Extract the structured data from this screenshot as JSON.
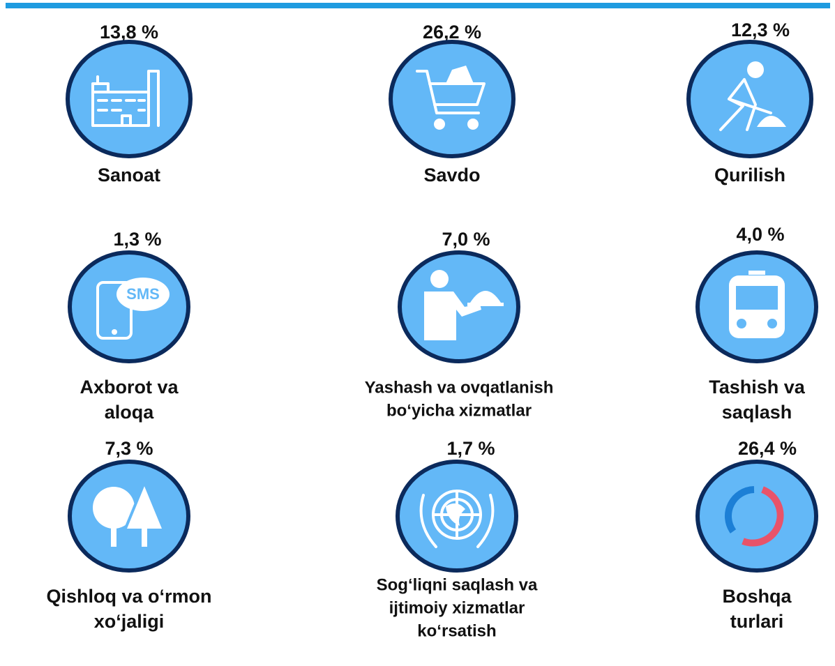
{
  "items": [
    {
      "value": "13,8 %",
      "label": [
        "Sanoat"
      ]
    },
    {
      "value": "26,2 %",
      "label": [
        "Savdo"
      ]
    },
    {
      "value": "12,3  %",
      "label": [
        "Qurilish"
      ]
    },
    {
      "value": "1,3 %",
      "label": [
        "Axborot va",
        "aloqa"
      ]
    },
    {
      "value": "7,0 %",
      "label": [
        "Yashash va ovqatlanish",
        "bo‘yicha xizmatlar"
      ]
    },
    {
      "value": "4,0 %",
      "label": [
        "Tashish va",
        "saqlash"
      ]
    },
    {
      "value": "7,3 %",
      "label": [
        "Qishloq va  o‘rmon",
        "xo‘jaligi"
      ]
    },
    {
      "value": "1,7 %",
      "label": [
        "Sog‘liqni saqlash va",
        "ijtimoiy xizmatlar",
        "ko‘rsatish"
      ]
    },
    {
      "value": "26,4 %",
      "label": [
        "Boshqa",
        "turlari"
      ]
    }
  ]
}
